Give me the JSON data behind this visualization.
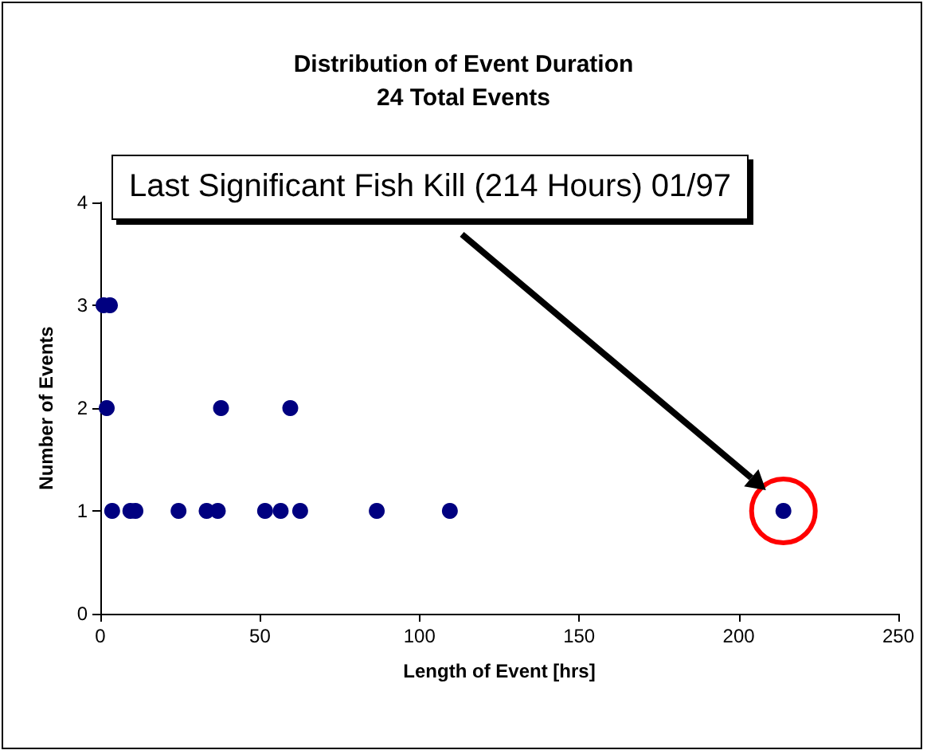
{
  "chart_data": {
    "type": "scatter",
    "title": "Distribution of Event Duration",
    "subtitle": "24 Total Events",
    "xlabel": "Length of Event [hrs]",
    "ylabel": "Number of Events",
    "x": [
      1,
      3,
      2,
      37.8,
      59.5,
      3.7,
      9.4,
      11,
      24.5,
      33.3,
      36.8,
      51.6,
      56.5,
      62.6,
      86.6,
      109.5,
      214
    ],
    "values": [
      3,
      3,
      2,
      2,
      2,
      1,
      1,
      1,
      1,
      1,
      1,
      1,
      1,
      1,
      1,
      1,
      1
    ],
    "color": "#000080",
    "marker": "circle",
    "grid": false,
    "xlim": [
      0,
      250
    ],
    "xticks": [
      0,
      50,
      100,
      150,
      200,
      250
    ],
    "ylim": [
      0,
      4
    ],
    "yticks": [
      0,
      1,
      2,
      3,
      4
    ],
    "annotations": [
      "Last Significant Fish Kill (214 Hours) 01/97"
    ]
  }
}
